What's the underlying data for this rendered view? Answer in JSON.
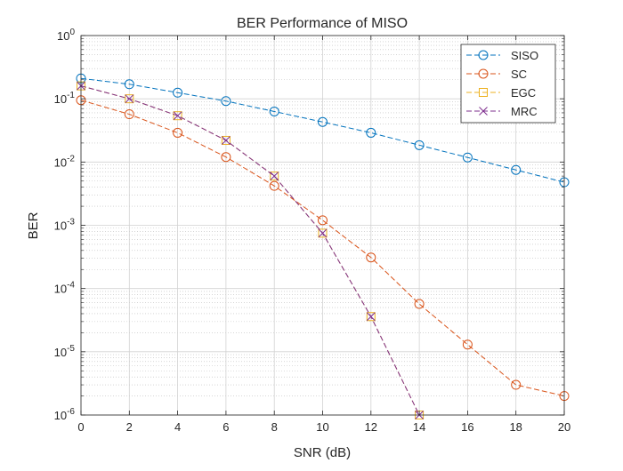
{
  "chart_data": {
    "type": "line",
    "title": "BER Performance of MISO",
    "xlabel": "SNR (dB)",
    "ylabel": "BER",
    "yscale": "log",
    "xlim": [
      0,
      20
    ],
    "ylim": [
      1e-06,
      1
    ],
    "grid": true,
    "minor_grid": true,
    "legend_position": "top-right",
    "x_ticks": [
      0,
      2,
      4,
      6,
      8,
      10,
      12,
      14,
      16,
      18,
      20
    ],
    "y_ticks": [
      {
        "value": 1,
        "base": "10",
        "exp": "0"
      },
      {
        "value": 0.1,
        "base": "10",
        "exp": "-1"
      },
      {
        "value": 0.01,
        "base": "10",
        "exp": "-2"
      },
      {
        "value": 0.001,
        "base": "10",
        "exp": "-3"
      },
      {
        "value": 0.0001,
        "base": "10",
        "exp": "-4"
      },
      {
        "value": 1e-05,
        "base": "10",
        "exp": "-5"
      },
      {
        "value": 1e-06,
        "base": "10",
        "exp": "-6"
      }
    ],
    "series": [
      {
        "name": "SISO",
        "color": "#0072BD",
        "marker": "circle",
        "x": [
          0,
          2,
          4,
          6,
          8,
          10,
          12,
          14,
          16,
          18,
          20
        ],
        "values": [
          0.21,
          0.17,
          0.125,
          0.092,
          0.063,
          0.043,
          0.029,
          0.0185,
          0.0118,
          0.0075,
          0.0048
        ]
      },
      {
        "name": "SC",
        "color": "#D95319",
        "marker": "circle",
        "x": [
          0,
          2,
          4,
          6,
          8,
          10,
          12,
          14,
          16,
          18,
          20
        ],
        "values": [
          0.095,
          0.057,
          0.029,
          0.012,
          0.0042,
          0.0012,
          0.00031,
          5.7e-05,
          1.3e-05,
          3e-06,
          2e-06
        ]
      },
      {
        "name": "EGC",
        "color": "#EDB120",
        "marker": "square",
        "x": [
          0,
          2,
          4,
          6,
          8,
          10,
          12,
          14
        ],
        "values": [
          0.16,
          0.1,
          0.054,
          0.022,
          0.006,
          0.00075,
          3.6e-05,
          1e-06
        ]
      },
      {
        "name": "MRC",
        "color": "#7E2F8E",
        "marker": "x",
        "x": [
          0,
          2,
          4,
          6,
          8,
          10,
          12,
          14
        ],
        "values": [
          0.16,
          0.1,
          0.054,
          0.022,
          0.006,
          0.00075,
          3.6e-05,
          1e-06
        ]
      }
    ]
  }
}
